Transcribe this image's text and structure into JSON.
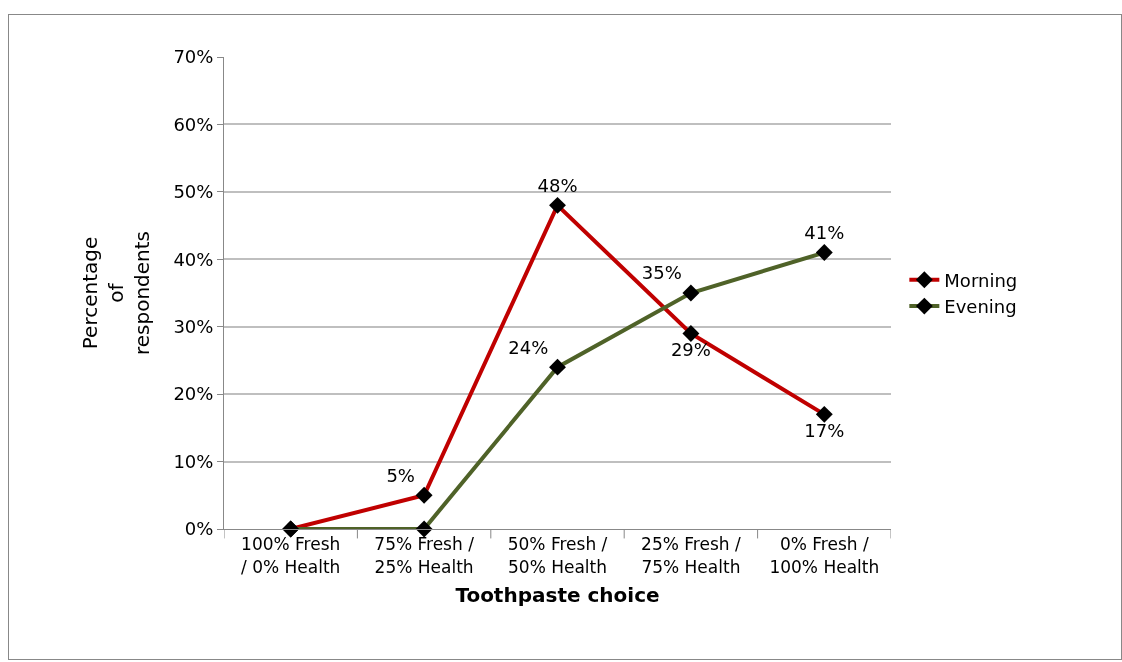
{
  "chart_data": {
    "type": "line",
    "xlabel": "Toothpaste choice",
    "ylabel": "Percentage of respondents",
    "categories": [
      "100% Fresh / 0% Health",
      "75% Fresh / 25% Health",
      "50% Fresh / 50% Health",
      "25% Fresh / 75% Health",
      "0% Fresh / 100% Health"
    ],
    "series": [
      {
        "name": "Morning",
        "color": "#c00000",
        "values": [
          0,
          5,
          48,
          29,
          17
        ],
        "value_labels": [
          null,
          "5%",
          "48%",
          "29%",
          "17%"
        ]
      },
      {
        "name": "Evening",
        "color": "#4f6228",
        "values": [
          0,
          0,
          24,
          35,
          41
        ],
        "value_labels": [
          null,
          null,
          "24%",
          "35%",
          "41%"
        ]
      }
    ],
    "ylim": [
      0,
      70
    ],
    "yticks": [
      {
        "value": 0,
        "label": "0%"
      },
      {
        "value": 10,
        "label": "10%"
      },
      {
        "value": 20,
        "label": "20%"
      },
      {
        "value": 30,
        "label": "30%"
      },
      {
        "value": 40,
        "label": "40%"
      },
      {
        "value": 50,
        "label": "50%"
      },
      {
        "value": 60,
        "label": "60%"
      },
      {
        "value": 70,
        "label": "70%"
      }
    ],
    "grid": "y",
    "legend": "right",
    "marker": "diamond",
    "line_style": "solid"
  }
}
